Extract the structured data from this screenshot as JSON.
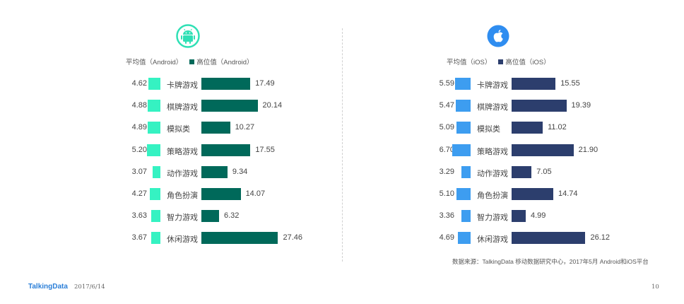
{
  "colors": {
    "android_avg": "#35f2c2",
    "android_high": "#00695a",
    "ios_avg": "#3d9df0",
    "ios_high": "#2c3e6d",
    "android_icon": "#2fe0b5",
    "ios_icon": "#2f8df0"
  },
  "icons": {
    "android": "android-logo-icon",
    "ios": "apple-logo-icon"
  },
  "chart_data": [
    {
      "type": "bar",
      "platform": "Android",
      "legend": [
        "平均值（Android）",
        "高位值（Android）"
      ],
      "categories": [
        "卡牌游戏",
        "棋牌游戏",
        "模拟类",
        "策略游戏",
        "动作游戏",
        "角色扮演",
        "智力游戏",
        "休闲游戏"
      ],
      "series": [
        {
          "name": "平均值（Android）",
          "values": [
            4.62,
            4.88,
            4.89,
            5.2,
            3.07,
            4.27,
            3.63,
            3.67
          ]
        },
        {
          "name": "高位值（Android）",
          "values": [
            17.49,
            20.14,
            10.27,
            17.55,
            9.34,
            14.07,
            6.32,
            27.46
          ]
        }
      ]
    },
    {
      "type": "bar",
      "platform": "iOS",
      "legend": [
        "平均值（iOS）",
        "高位值（iOS）"
      ],
      "categories": [
        "卡牌游戏",
        "棋牌游戏",
        "模拟类",
        "策略游戏",
        "动作游戏",
        "角色扮演",
        "智力游戏",
        "休闲游戏"
      ],
      "series": [
        {
          "name": "平均值（iOS）",
          "values": [
            5.59,
            5.47,
            5.09,
            6.7,
            3.29,
            5.1,
            3.36,
            4.69
          ]
        },
        {
          "name": "高位值（iOS）",
          "values": [
            15.55,
            19.39,
            11.02,
            21.9,
            7.05,
            14.74,
            4.99,
            26.12
          ]
        }
      ]
    }
  ],
  "footer": {
    "source": "数据来源：TalkingData 移动数据研究中心，2017年5月 Android和iOS平台",
    "logo": "TalkingData",
    "date": "2017/6/14",
    "page": "10"
  }
}
